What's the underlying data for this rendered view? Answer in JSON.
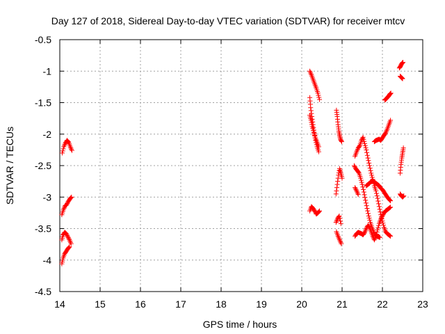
{
  "chart_data": {
    "type": "scatter",
    "title": "Day 127 of 2018, Sidereal Day-to-day VTEC variation (SDTVAR) for receiver mtcv",
    "xlabel": "GPS time / hours",
    "ylabel": "SDTVAR / TECUs",
    "xlim": [
      14,
      23
    ],
    "ylim": [
      -4.5,
      -0.5
    ],
    "xticks": [
      "14",
      "15",
      "16",
      "17",
      "18",
      "19",
      "20",
      "21",
      "22",
      "23"
    ],
    "yticks": [
      "-0.5",
      "-1",
      "-1.5",
      "-2",
      "-2.5",
      "-3",
      "-3.5",
      "-4",
      "-4.5"
    ],
    "grid": true,
    "marker": "+",
    "series": [
      {
        "name": "SDTVAR",
        "color": "#ff0000",
        "segments": [
          {
            "x": [
              14.06,
              14.1,
              14.14,
              14.18,
              14.22,
              14.26,
              14.3
            ],
            "y": [
              -2.3,
              -2.2,
              -2.14,
              -2.1,
              -2.13,
              -2.2,
              -2.26
            ]
          },
          {
            "x": [
              14.05,
              14.09,
              14.13,
              14.17,
              14.21,
              14.25,
              14.29
            ],
            "y": [
              -3.28,
              -3.2,
              -3.14,
              -3.12,
              -3.07,
              -3.03,
              -3.0
            ]
          },
          {
            "x": [
              14.05,
              14.08,
              14.12,
              14.16,
              14.2,
              14.24,
              14.28
            ],
            "y": [
              -3.68,
              -3.6,
              -3.56,
              -3.58,
              -3.63,
              -3.68,
              -3.74
            ]
          },
          {
            "x": [
              14.05,
              14.08,
              14.12,
              14.16,
              14.2,
              14.24
            ],
            "y": [
              -4.06,
              -3.97,
              -3.9,
              -3.86,
              -3.82,
              -3.79
            ]
          },
          {
            "x": [
              20.2,
              20.24,
              20.28,
              20.32,
              20.36,
              20.4,
              20.44
            ],
            "y": [
              -1.0,
              -1.06,
              -1.13,
              -1.2,
              -1.27,
              -1.35,
              -1.45
            ]
          },
          {
            "x": [
              20.2,
              20.22,
              20.25,
              20.28,
              20.31,
              20.34,
              20.38,
              20.42
            ],
            "y": [
              -1.42,
              -1.58,
              -1.72,
              -1.85,
              -1.98,
              -2.1,
              -2.2,
              -2.28
            ]
          },
          {
            "x": [
              20.2,
              20.23,
              20.26,
              20.3,
              20.34,
              20.38,
              20.42
            ],
            "y": [
              -1.7,
              -1.78,
              -1.88,
              -1.97,
              -2.06,
              -2.13,
              -2.2
            ]
          },
          {
            "x": [
              20.2,
              20.24,
              20.28,
              20.32,
              20.36,
              20.4,
              20.44
            ],
            "y": [
              -3.22,
              -3.15,
              -3.18,
              -3.22,
              -3.27,
              -3.25,
              -3.22
            ]
          },
          {
            "x": [
              20.86,
              20.88,
              20.9,
              20.92,
              20.94,
              20.96,
              20.99
            ],
            "y": [
              -1.62,
              -1.72,
              -1.85,
              -1.95,
              -2.02,
              -2.08,
              -2.12
            ]
          },
          {
            "x": [
              20.85,
              20.88,
              20.91,
              20.94,
              20.97,
              21.0
            ],
            "y": [
              -2.95,
              -2.8,
              -2.65,
              -2.55,
              -2.62,
              -2.7
            ]
          },
          {
            "x": [
              20.86,
              20.9,
              20.94,
              20.98
            ],
            "y": [
              -3.55,
              -3.62,
              -3.68,
              -3.74
            ]
          },
          {
            "x": [
              20.85,
              20.89,
              20.93,
              20.97
            ],
            "y": [
              -3.4,
              -3.34,
              -3.3,
              -3.42
            ]
          },
          {
            "x": [
              21.32,
              21.36,
              21.4,
              21.44,
              21.48,
              21.52,
              21.56,
              21.6,
              21.64,
              21.68,
              21.72,
              21.76,
              21.8,
              21.84,
              21.88,
              21.92,
              21.96,
              22.0,
              22.04,
              22.08,
              22.12,
              22.16,
              22.2
            ],
            "y": [
              -2.35,
              -2.28,
              -2.22,
              -2.18,
              -2.1,
              -2.05,
              -2.15,
              -2.25,
              -2.38,
              -2.5,
              -2.62,
              -2.72,
              -2.82,
              -2.9,
              -3.02,
              -3.15,
              -3.28,
              -3.38,
              -3.48,
              -3.55,
              -3.58,
              -3.6,
              -3.62
            ]
          },
          {
            "x": [
              21.32,
              21.36,
              21.4,
              21.44,
              21.48,
              21.52,
              21.56,
              21.6,
              21.64,
              21.68,
              21.72,
              21.76,
              21.8,
              21.84,
              21.88,
              21.92,
              21.96,
              22.0,
              22.04,
              22.08,
              22.12,
              22.16,
              22.2
            ],
            "y": [
              -3.62,
              -3.58,
              -3.56,
              -3.57,
              -3.58,
              -3.6,
              -3.56,
              -3.5,
              -3.45,
              -3.48,
              -3.55,
              -3.62,
              -3.68,
              -3.62,
              -3.52,
              -3.42,
              -3.35,
              -3.3,
              -3.25,
              -3.22,
              -3.2,
              -3.18,
              -3.16
            ]
          },
          {
            "x": [
              21.3,
              21.34,
              21.38,
              21.42,
              21.46,
              21.5,
              21.54,
              21.58,
              21.62,
              21.66,
              21.7,
              21.74,
              21.78,
              21.82,
              21.86,
              21.9,
              21.94
            ],
            "y": [
              -2.5,
              -2.55,
              -2.58,
              -2.62,
              -2.7,
              -2.8,
              -2.92,
              -3.05,
              -3.18,
              -3.3,
              -3.4,
              -3.48,
              -3.55,
              -3.6,
              -3.62,
              -3.63,
              -3.64
            ]
          },
          {
            "x": [
              21.32,
              21.36,
              21.4
            ],
            "y": [
              -2.85,
              -2.9,
              -2.96
            ]
          },
          {
            "x": [
              21.6,
              21.64,
              21.68,
              21.72,
              21.76,
              21.8,
              21.84,
              21.88,
              21.92,
              21.96,
              22.0,
              22.04,
              22.08,
              22.12,
              22.16,
              22.2
            ],
            "y": [
              -2.82,
              -2.8,
              -2.78,
              -2.75,
              -2.74,
              -2.76,
              -2.78,
              -2.8,
              -2.82,
              -2.86,
              -2.88,
              -2.92,
              -2.96,
              -3.0,
              -3.03,
              -3.06
            ]
          },
          {
            "x": [
              21.8,
              21.84,
              21.88,
              21.92,
              21.96,
              22.0,
              22.04,
              22.08,
              22.12,
              22.16,
              22.2
            ],
            "y": [
              -2.12,
              -2.1,
              -2.09,
              -2.08,
              -2.1,
              -2.06,
              -2.02,
              -1.98,
              -1.92,
              -1.85,
              -1.78
            ]
          },
          {
            "x": [
              22.06,
              22.09,
              22.12,
              22.15,
              22.18,
              22.21
            ],
            "y": [
              -1.46,
              -1.44,
              -1.42,
              -1.4,
              -1.37,
              -1.35
            ]
          },
          {
            "x": [
              22.42,
              22.45,
              22.48,
              22.51
            ],
            "y": [
              -0.95,
              -0.92,
              -0.88,
              -0.86
            ]
          },
          {
            "x": [
              22.44,
              22.47,
              22.5
            ],
            "y": [
              -1.08,
              -1.1,
              -1.12
            ]
          },
          {
            "x": [
              22.44,
              22.46,
              22.48,
              22.5,
              22.52
            ],
            "y": [
              -2.62,
              -2.48,
              -2.38,
              -2.3,
              -2.22
            ]
          },
          {
            "x": [
              22.44,
              22.47,
              22.5,
              22.53
            ],
            "y": [
              -2.95,
              -2.98,
              -3.0,
              -2.98
            ]
          }
        ]
      }
    ]
  }
}
